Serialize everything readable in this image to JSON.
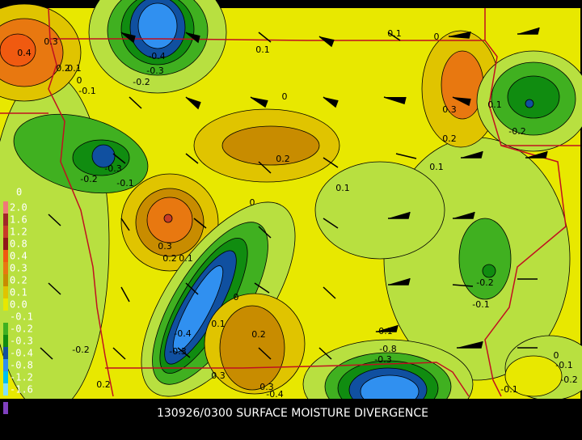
{
  "title": "130926/0300 SURFACE MOISTURE DIVERGENCE",
  "legend": {
    "top_label": "0",
    "labels": [
      "2.0",
      "1.6",
      "1.2",
      "0.8",
      "0.4",
      "0.3",
      "0.2",
      "0.1",
      "0.0",
      "-0.1",
      "-0.2",
      "-0.3",
      "-0.4",
      "-0.8",
      "-1.2",
      "-1.6"
    ],
    "colors": [
      "#f07878",
      "#a02828",
      "#c83c28",
      "#901818",
      "#f05a10",
      "#e87810",
      "#c88c00",
      "#e0c400",
      "#e8e800",
      "#b8e040",
      "#40b020",
      "#108c10",
      "#1050a0",
      "#3090f0",
      "#00c0f0",
      "#80e0ff"
    ]
  },
  "contour_labels": [
    "0.3",
    "0.4",
    "0.2",
    "0.1",
    "0",
    "-0.1",
    "-0.4",
    "-0.3",
    "-0.2",
    "0.1",
    "0.1",
    "0",
    "0",
    "0.3",
    "0.1",
    "-0.2",
    "0.2",
    "0.1",
    "0.2",
    "-0.3",
    "-0.2",
    "-0.1",
    "0",
    "0.1",
    "0.3",
    "0.2",
    "0.1",
    "-0.2",
    "-0.1",
    "0",
    "0.1",
    "0.2",
    "-0.4",
    "-0.3",
    "-0.2",
    "-0.1",
    "-0.8",
    "-0.3",
    "0.3",
    "0.3",
    "-0.4",
    "0.2",
    "-0.1",
    "0",
    "-0.1",
    "-0.2"
  ]
}
